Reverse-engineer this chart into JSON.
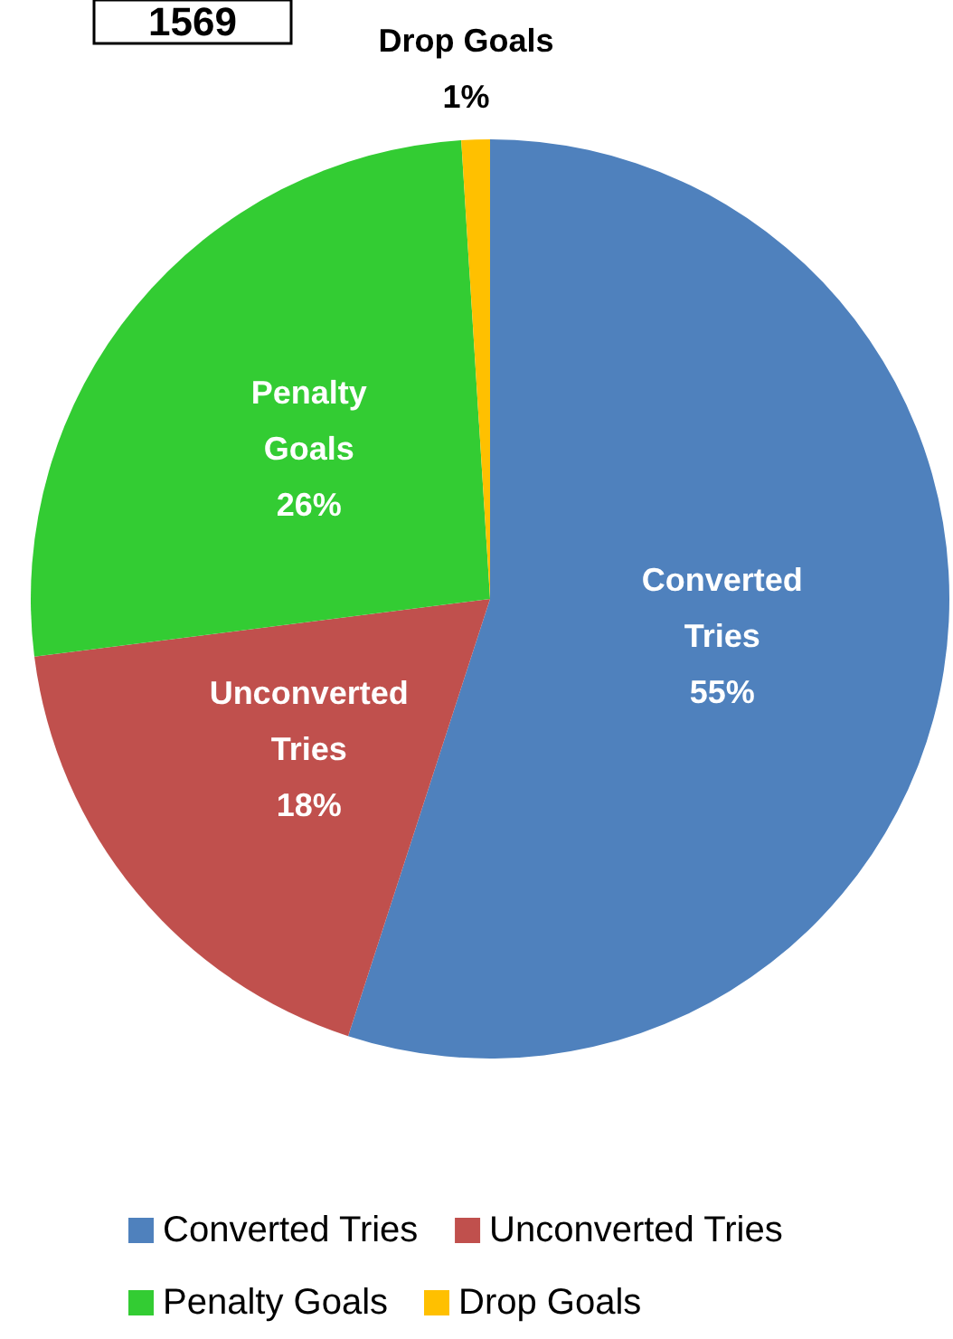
{
  "chart_data": {
    "type": "pie",
    "categories": [
      "Converted Tries",
      "Unconverted Tries",
      "Penalty Goals",
      "Drop Goals"
    ],
    "values": [
      55,
      18,
      26,
      1
    ],
    "colors": [
      "#4f81bd",
      "#c0504d",
      "#33cc33",
      "#ffc000"
    ],
    "value_labels": [
      "55%",
      "18%",
      "26%",
      "1%"
    ],
    "legend": "bottom",
    "annotations": [
      "1569"
    ]
  }
}
